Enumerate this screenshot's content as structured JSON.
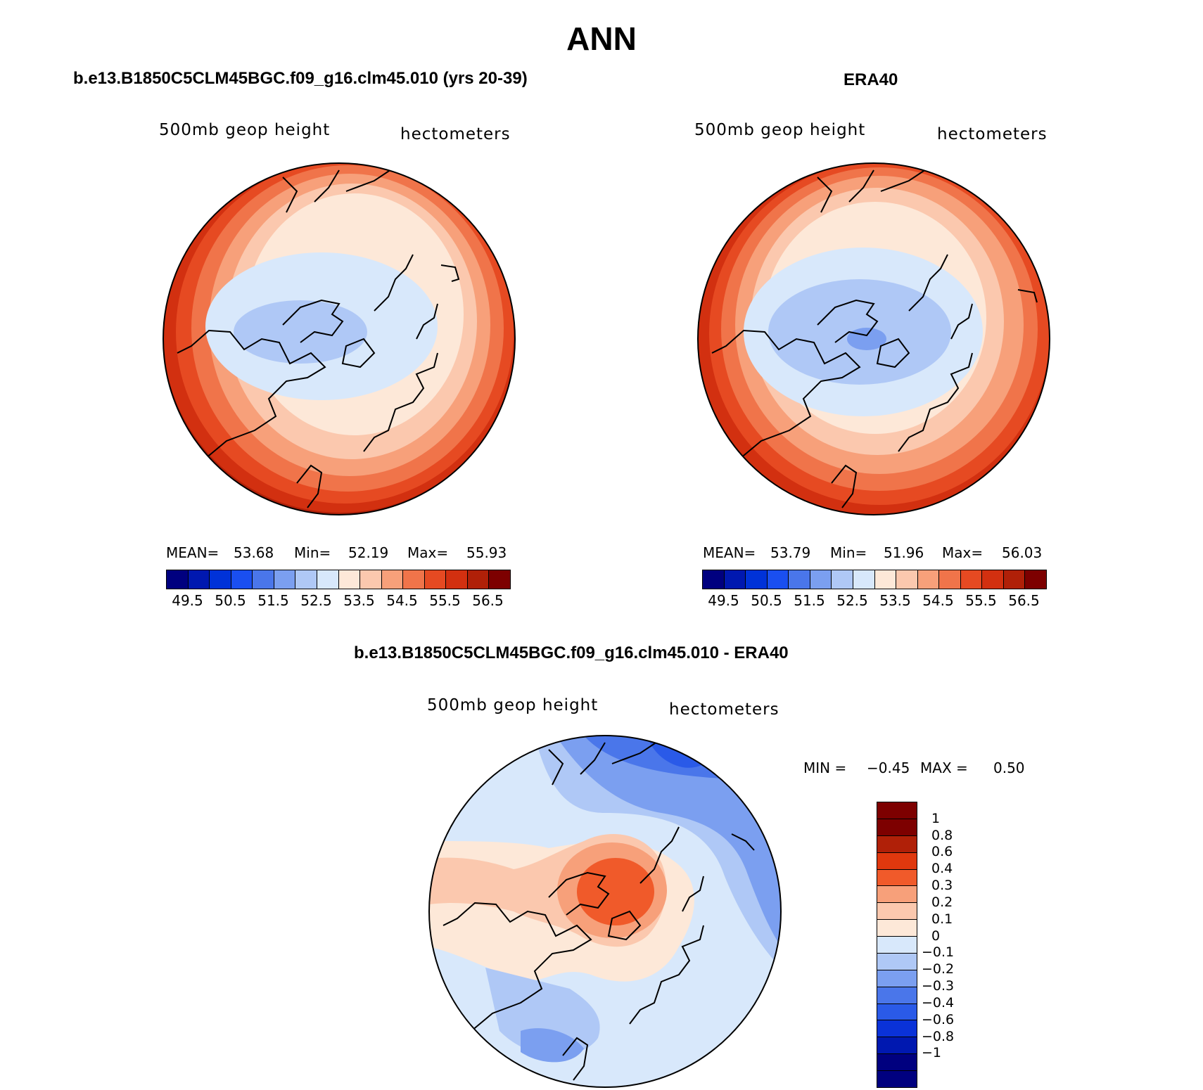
{
  "figure": {
    "title": "ANN",
    "panels": [
      {
        "title": "b.e13.B1850C5CLM45BGC.f09_g16.clm45.010 (yrs 20-39)",
        "variable": "500mb geop height",
        "units": "hectometers",
        "stats": {
          "mean_label": "MEAN=",
          "mean": "53.68",
          "min_label": "Min=",
          "min": "52.19",
          "max_label": "Max=",
          "max": "55.93"
        },
        "pole_value": 52.4
      },
      {
        "title": "ERA40",
        "variable": "500mb geop height",
        "units": "hectometers",
        "stats": {
          "mean_label": "MEAN=",
          "mean": "53.79",
          "min_label": "Min=",
          "min": "51.96",
          "max_label": "Max=",
          "max": "56.03"
        },
        "pole_value": 52.2
      },
      {
        "title": "b.e13.B1850C5CLM45BGC.f09_g16.clm45.010 - ERA40",
        "variable": "500mb geop height",
        "units": "hectometers",
        "stats": {
          "min_label": "MIN =",
          "min": "−0.45",
          "max_label": "MAX =",
          "max": "0.50"
        }
      }
    ]
  },
  "colorbar_abs": {
    "ticks": [
      "49.5",
      "50.5",
      "51.5",
      "52.5",
      "53.5",
      "54.5",
      "55.5",
      "56.5"
    ],
    "colors": [
      "#00007f",
      "#0018b0",
      "#0032d8",
      "#1a4ff0",
      "#4a76ea",
      "#7b9ff0",
      "#afc8f6",
      "#d8e8fb",
      "#fde8d8",
      "#fbc8ae",
      "#f7a07a",
      "#f0744a",
      "#e64a22",
      "#d23010",
      "#b02008",
      "#7d0000"
    ]
  },
  "colorbar_diff": {
    "ticks": [
      "1",
      "0.8",
      "0.6",
      "0.4",
      "0.3",
      "0.2",
      "0.1",
      "0",
      "−0.1",
      "−0.2",
      "−0.3",
      "−0.4",
      "−0.6",
      "−0.8",
      "−1"
    ],
    "colors": [
      "#7d0000",
      "#b02008",
      "#e0380e",
      "#f05a2a",
      "#f7a07a",
      "#fbc8ae",
      "#fde8d8",
      "#d8e8fb",
      "#afc8f6",
      "#7b9ff0",
      "#4a76ea",
      "#2a5ae8",
      "#0a32d8",
      "#0018b0",
      "#00007f"
    ]
  },
  "chart_data": [
    {
      "type": "heatmap",
      "title": "b.e13.B1850C5CLM45BGC.f09_g16.clm45.010 (yrs 20-39)",
      "variable": "500mb geop height",
      "units": "hectometers",
      "projection": "north polar stereographic",
      "levels": [
        49.5,
        50,
        50.5,
        51,
        51.5,
        52,
        52.5,
        53,
        53.5,
        54,
        54.5,
        55,
        55.5,
        56,
        56.5
      ],
      "mean": 53.68,
      "min": 52.19,
      "max": 55.93
    },
    {
      "type": "heatmap",
      "title": "ERA40",
      "variable": "500mb geop height",
      "units": "hectometers",
      "projection": "north polar stereographic",
      "levels": [
        49.5,
        50,
        50.5,
        51,
        51.5,
        52,
        52.5,
        53,
        53.5,
        54,
        54.5,
        55,
        55.5,
        56,
        56.5
      ],
      "mean": 53.79,
      "min": 51.96,
      "max": 56.03
    },
    {
      "type": "heatmap",
      "title": "b.e13.B1850C5CLM45BGC.f09_g16.clm45.010 - ERA40",
      "variable": "500mb geop height",
      "units": "hectometers",
      "projection": "north polar stereographic",
      "levels": [
        -1,
        -0.8,
        -0.6,
        -0.4,
        -0.3,
        -0.2,
        -0.1,
        0,
        0.1,
        0.2,
        0.3,
        0.4,
        0.6,
        0.8,
        1
      ],
      "min": -0.45,
      "max": 0.5
    }
  ]
}
